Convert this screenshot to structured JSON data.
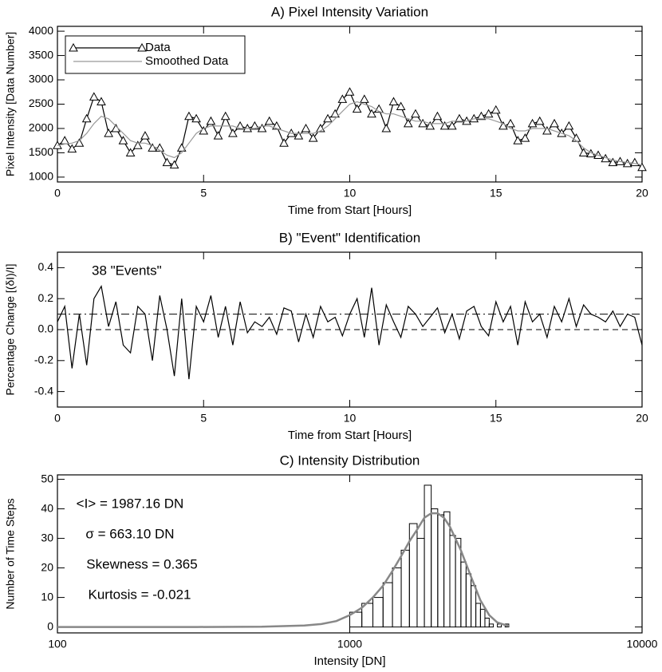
{
  "chart_data": [
    {
      "type": "line",
      "title": "A) Pixel Intensity Variation",
      "x_label": "Time from Start [Hours]",
      "y_label": "Pixel Intensity [Data Number]",
      "x": [
        0,
        0.25,
        0.5,
        0.75,
        1,
        1.25,
        1.5,
        1.75,
        2,
        2.25,
        2.5,
        2.75,
        3,
        3.25,
        3.5,
        3.75,
        4,
        4.25,
        4.5,
        4.75,
        5,
        5.25,
        5.5,
        5.75,
        6,
        6.25,
        6.5,
        6.75,
        7,
        7.25,
        7.5,
        7.75,
        8,
        8.25,
        8.5,
        8.75,
        9,
        9.25,
        9.5,
        9.75,
        10,
        10.25,
        10.5,
        10.75,
        11,
        11.25,
        11.5,
        11.75,
        12,
        12.25,
        12.5,
        12.75,
        13,
        13.25,
        13.5,
        13.75,
        14,
        14.25,
        14.5,
        14.75,
        15,
        15.25,
        15.5,
        15.75,
        16,
        16.25,
        16.5,
        16.75,
        17,
        17.25,
        17.5,
        17.75,
        18,
        18.25,
        18.5,
        18.75,
        19,
        19.25,
        19.5,
        19.75,
        20
      ],
      "series": [
        {
          "name": "Data",
          "color": "#000000",
          "marker": "triangle",
          "values": [
            1650,
            1750,
            1580,
            1700,
            2200,
            2650,
            2550,
            1900,
            2000,
            1750,
            1500,
            1650,
            1850,
            1600,
            1600,
            1300,
            1250,
            1600,
            2250,
            2200,
            1950,
            2150,
            1850,
            2250,
            1900,
            2050,
            2000,
            2050,
            2000,
            2150,
            2050,
            1700,
            1900,
            1850,
            2000,
            1800,
            2000,
            2200,
            2300,
            2600,
            2750,
            2400,
            2600,
            2300,
            2400,
            2000,
            2550,
            2450,
            2100,
            2300,
            2100,
            2050,
            2250,
            2050,
            2050,
            2200,
            2150,
            2200,
            2250,
            2300,
            2380,
            2050,
            2100,
            1750,
            1800,
            2100,
            2150,
            1950,
            2100,
            1900,
            2050,
            1800,
            1500,
            1480,
            1450,
            1380,
            1300,
            1320,
            1280,
            1300,
            1200
          ]
        },
        {
          "name": "Smoothed Data",
          "color": "#999999",
          "values": [
            1650,
            1680,
            1700,
            1750,
            1900,
            2100,
            2250,
            2200,
            2050,
            1900,
            1750,
            1700,
            1700,
            1650,
            1550,
            1450,
            1400,
            1500,
            1700,
            1900,
            2000,
            2050,
            2050,
            2050,
            2050,
            2000,
            2000,
            2000,
            2050,
            2050,
            2000,
            1950,
            1900,
            1900,
            1900,
            1900,
            1950,
            2050,
            2200,
            2350,
            2500,
            2550,
            2500,
            2450,
            2350,
            2300,
            2300,
            2250,
            2200,
            2150,
            2150,
            2100,
            2100,
            2100,
            2150,
            2150,
            2150,
            2200,
            2200,
            2200,
            2150,
            2100,
            2000,
            1950,
            1950,
            2000,
            2000,
            2000,
            1950,
            1900,
            1850,
            1750,
            1600,
            1500,
            1450,
            1400,
            1350,
            1320,
            1300,
            1280,
            1250
          ]
        }
      ],
      "xlim": [
        0,
        20
      ],
      "xticks": [
        0,
        5,
        10,
        15,
        20
      ],
      "ylim": [
        900,
        4100
      ],
      "yticks": [
        1000,
        1500,
        2000,
        2500,
        3000,
        3500,
        4000
      ],
      "legend": "top-left"
    },
    {
      "type": "line",
      "title": "B) \"Event\" Identification",
      "x_label": "Time from Start [Hours]",
      "y_label": "Percentage Change [(δI)/I]",
      "annotations": [
        "38 \"Events\""
      ],
      "x": [
        0,
        0.25,
        0.5,
        0.75,
        1,
        1.25,
        1.5,
        1.75,
        2,
        2.25,
        2.5,
        2.75,
        3,
        3.25,
        3.5,
        3.75,
        4,
        4.25,
        4.5,
        4.75,
        5,
        5.25,
        5.5,
        5.75,
        6,
        6.25,
        6.5,
        6.75,
        7,
        7.25,
        7.5,
        7.75,
        8,
        8.25,
        8.5,
        8.75,
        9,
        9.25,
        9.5,
        9.75,
        10,
        10.25,
        10.5,
        10.75,
        11,
        11.25,
        11.5,
        11.75,
        12,
        12.25,
        12.5,
        12.75,
        13,
        13.25,
        13.5,
        13.75,
        14,
        14.25,
        14.5,
        14.75,
        15,
        15.25,
        15.5,
        15.75,
        16,
        16.25,
        16.5,
        16.75,
        17,
        17.25,
        17.5,
        17.75,
        18,
        18.25,
        18.5,
        18.75,
        19,
        19.25,
        19.5,
        19.75,
        20
      ],
      "series": [
        {
          "color": "#000000",
          "values": [
            0.05,
            0.15,
            -0.25,
            0.1,
            -0.23,
            0.2,
            0.28,
            0.02,
            0.18,
            -0.1,
            -0.15,
            0.15,
            0.1,
            -0.2,
            0.22,
            0,
            -0.3,
            0.2,
            -0.32,
            0.15,
            0.05,
            0.22,
            -0.05,
            0.15,
            -0.1,
            0.18,
            -0.02,
            0.05,
            0.02,
            0.08,
            -0.03,
            0.14,
            0.12,
            -0.08,
            0.1,
            -0.05,
            0.15,
            0.05,
            0.08,
            -0.04,
            0.1,
            0.2,
            -0.05,
            0.27,
            -0.1,
            0.16,
            0.05,
            -0.05,
            0.15,
            0.1,
            0.02,
            0.08,
            0.14,
            -0.02,
            0.1,
            -0.06,
            0.12,
            0.15,
            0.02,
            -0.04,
            0.18,
            0.05,
            0.15,
            -0.1,
            0.18,
            0.05,
            0.1,
            -0.05,
            0.15,
            0.05,
            0.2,
            0.02,
            0.16,
            0.1,
            0.08,
            0.05,
            0.12,
            0.02,
            0.1,
            0.08,
            -0.1
          ]
        }
      ],
      "hlines": [
        {
          "value": 0,
          "style": "dashed"
        },
        {
          "value": 0.1,
          "style": "dashdot"
        }
      ],
      "xlim": [
        0,
        20
      ],
      "xticks": [
        0,
        5,
        10,
        15,
        20
      ],
      "ylim": [
        -0.5,
        0.5
      ],
      "yticks": [
        -0.4,
        -0.2,
        {
          "value": 0,
          "label": "0.0"
        },
        0.2,
        0.4
      ]
    },
    {
      "type": "histogram",
      "title": "C) Intensity Distribution",
      "x_label": "Intensity [DN]",
      "y_label": "Number of Time Steps",
      "annotations": [
        "<I> = 1987.16 DN",
        "σ = 663.10 DN",
        "Skewness = 0.365",
        "Kurtosis = -0.021"
      ],
      "bins": [
        1000,
        1100,
        1200,
        1300,
        1400,
        1500,
        1600,
        1700,
        1800,
        1900,
        2000,
        2100,
        2200,
        2300,
        2400,
        2500,
        2600,
        2700,
        2800,
        2900,
        3000,
        3100,
        3200,
        3300,
        3400,
        3500,
        3600
      ],
      "counts": [
        5,
        8,
        10,
        15,
        20,
        26,
        35,
        30,
        48,
        40,
        38,
        39,
        31,
        30,
        22,
        18,
        14,
        8,
        6,
        3,
        1,
        0,
        1,
        0,
        1,
        0
      ],
      "color": "#000000",
      "fit": {
        "color": "#888888",
        "x": [
          100,
          300,
          500,
          700,
          800,
          900,
          1000,
          1100,
          1200,
          1300,
          1400,
          1500,
          1600,
          1700,
          1800,
          1900,
          2000,
          2100,
          2200,
          2400,
          2600,
          2800,
          3000,
          3200,
          3500
        ],
        "values": [
          0,
          0,
          0.1,
          0.5,
          1,
          2,
          4,
          6.5,
          10,
          14,
          19,
          24,
          29,
          33,
          37,
          38.5,
          38.5,
          37,
          34,
          26,
          17,
          9,
          4,
          1.5,
          0.3
        ]
      },
      "xlog": true,
      "xlim": [
        100,
        10000
      ],
      "xticks": [
        100,
        1000,
        10000
      ],
      "ylim": [
        -2,
        51.5
      ],
      "yticks": [
        0,
        10,
        20,
        30,
        40,
        50
      ]
    }
  ]
}
